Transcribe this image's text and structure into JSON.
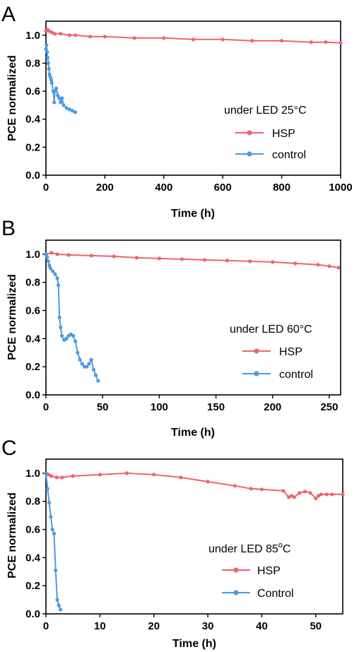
{
  "colors": {
    "HSP": "#f0636b",
    "control": "#4c9be0",
    "axis": "#000000"
  },
  "chart_data": [
    {
      "type": "line",
      "panel": "A",
      "annotation": "under LED 25°C",
      "xlabel": "Time (h)",
      "ylabel": "PCE normalized",
      "xlim": [
        0,
        1000
      ],
      "ylim": [
        0,
        1.1
      ],
      "xticks": [
        0,
        200,
        400,
        600,
        800,
        1000
      ],
      "yticks": [
        0.0,
        0.2,
        0.4,
        0.6,
        0.8,
        1.0
      ],
      "yticklabels": [
        "0.0",
        "0.2",
        "0.4",
        "0.6",
        "0.8",
        "1.0"
      ],
      "legend_placement": "middle-right",
      "series": [
        {
          "name": "HSP",
          "color_key": "HSP",
          "x": [
            0,
            5,
            10,
            20,
            30,
            50,
            80,
            100,
            150,
            200,
            300,
            400,
            500,
            600,
            700,
            800,
            900,
            950,
            1000
          ],
          "y": [
            1.03,
            1.04,
            1.03,
            1.02,
            1.01,
            1.01,
            1.0,
            1.0,
            0.99,
            0.99,
            0.98,
            0.98,
            0.97,
            0.97,
            0.96,
            0.96,
            0.95,
            0.95,
            0.945
          ]
        },
        {
          "name": "control",
          "color_key": "control",
          "x": [
            0,
            2,
            4,
            6,
            8,
            10,
            12,
            15,
            18,
            20,
            25,
            28,
            30,
            35,
            40,
            45,
            50,
            55,
            60,
            70,
            80,
            90,
            100
          ],
          "y": [
            0.9,
            0.93,
            0.88,
            0.84,
            0.8,
            0.76,
            0.72,
            0.7,
            0.68,
            0.66,
            0.6,
            0.52,
            0.6,
            0.62,
            0.57,
            0.55,
            0.52,
            0.55,
            0.5,
            0.48,
            0.47,
            0.46,
            0.45
          ]
        }
      ]
    },
    {
      "type": "line",
      "panel": "B",
      "annotation": "under LED 60°C",
      "xlabel": "Time (h)",
      "ylabel": "PCE normalized",
      "xlim": [
        0,
        260
      ],
      "ylim": [
        0,
        1.1
      ],
      "xticks": [
        0,
        50,
        100,
        150,
        200,
        250
      ],
      "yticks": [
        0.0,
        0.2,
        0.4,
        0.6,
        0.8,
        1.0
      ],
      "yticklabels": [
        "0.0",
        "0.2",
        "0.4",
        "0.6",
        "0.8",
        "1.0"
      ],
      "legend_placement": "bottom-right",
      "series": [
        {
          "name": "HSP",
          "color_key": "HSP",
          "x": [
            0,
            5,
            10,
            20,
            40,
            60,
            80,
            100,
            120,
            140,
            160,
            180,
            200,
            220,
            240,
            250,
            258
          ],
          "y": [
            1.0,
            1.01,
            1.0,
            0.995,
            0.99,
            0.985,
            0.975,
            0.97,
            0.965,
            0.96,
            0.955,
            0.95,
            0.945,
            0.935,
            0.925,
            0.915,
            0.905
          ]
        },
        {
          "name": "control",
          "color_key": "control",
          "x": [
            0,
            1,
            2,
            3,
            4,
            6,
            8,
            10,
            11,
            12,
            13,
            14,
            16,
            18,
            20,
            22,
            24,
            26,
            28,
            30,
            32,
            34,
            36,
            38,
            40,
            42,
            44,
            46
          ],
          "y": [
            1.0,
            0.98,
            0.95,
            0.92,
            0.9,
            0.88,
            0.86,
            0.83,
            0.78,
            0.55,
            0.48,
            0.42,
            0.39,
            0.4,
            0.42,
            0.43,
            0.42,
            0.38,
            0.3,
            0.25,
            0.22,
            0.2,
            0.2,
            0.22,
            0.25,
            0.18,
            0.14,
            0.1
          ]
        }
      ]
    },
    {
      "type": "line",
      "panel": "C",
      "annotation": "under LED 85°C",
      "annotation_parts": [
        "under LED 85",
        "o",
        "C"
      ],
      "xlabel": "Time (h)",
      "ylabel": "PCE normalized",
      "xlim": [
        0,
        55
      ],
      "ylim": [
        0,
        1.1
      ],
      "xticks": [
        0,
        10,
        20,
        30,
        40,
        50
      ],
      "yticks": [
        0.0,
        0.2,
        0.4,
        0.6,
        0.8,
        1.0
      ],
      "yticklabels": [
        "0.0",
        "0.2",
        "0.4",
        "0.6",
        "0.8",
        "1.0"
      ],
      "legend_placement": "bottom-right",
      "series": [
        {
          "name": "HSP",
          "color_key": "HSP",
          "x": [
            0,
            0.5,
            1,
            2,
            3,
            5,
            10,
            15,
            20,
            25,
            30,
            35,
            38,
            40,
            44,
            45,
            45.5,
            46,
            47,
            48,
            49,
            50,
            50.5,
            51,
            52,
            53,
            55
          ],
          "y": [
            1.0,
            0.99,
            0.98,
            0.97,
            0.97,
            0.98,
            0.99,
            1.0,
            0.99,
            0.97,
            0.94,
            0.91,
            0.89,
            0.885,
            0.875,
            0.83,
            0.84,
            0.83,
            0.86,
            0.87,
            0.86,
            0.82,
            0.84,
            0.85,
            0.85,
            0.85,
            0.85
          ]
        },
        {
          "name": "Control",
          "color_key": "control",
          "x": [
            0,
            0.3,
            0.6,
            0.9,
            1.2,
            1.5,
            1.8,
            2.1,
            2.4,
            2.7
          ],
          "y": [
            1.0,
            0.89,
            0.79,
            0.69,
            0.6,
            0.57,
            0.31,
            0.1,
            0.06,
            0.03
          ]
        }
      ]
    }
  ]
}
